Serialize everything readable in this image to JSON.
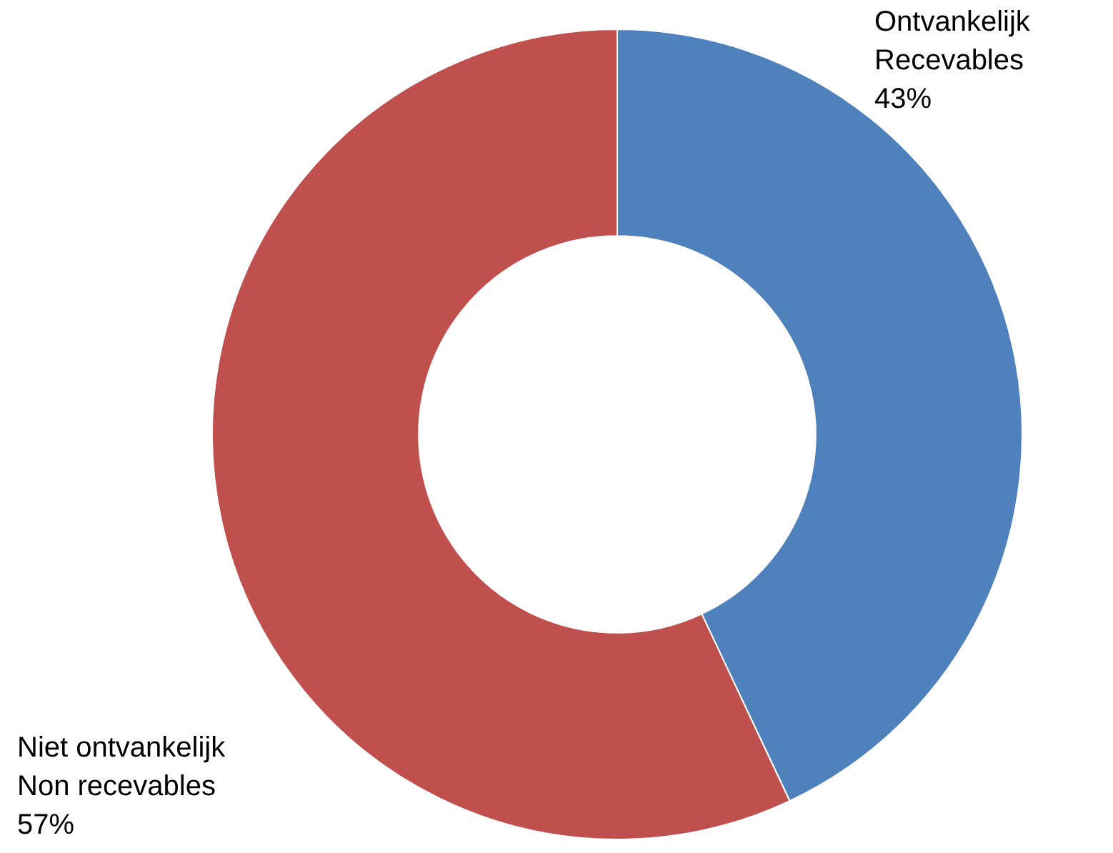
{
  "chart_data": {
    "type": "donut",
    "categories": [
      "Ontvankelijk\nRecevables",
      "Niet ontvankelijk\nNon recevables"
    ],
    "values": [
      43,
      57
    ],
    "value_labels": [
      "43%",
      "57%"
    ],
    "colors": [
      "#4f81bd",
      "#c0504d"
    ],
    "legend": false
  }
}
